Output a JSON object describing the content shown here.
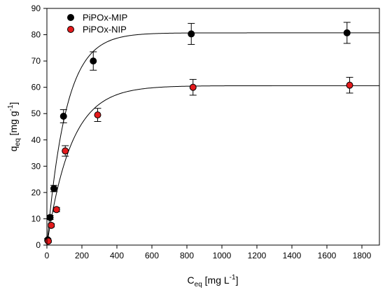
{
  "chart_data": {
    "type": "scatter",
    "title": "",
    "xlabel": {
      "base": "C",
      "sub": "eq",
      "unit_pre": " [mg L",
      "unit_sup": "-1",
      "unit_post": "]"
    },
    "ylabel": {
      "base": "q",
      "sub": "eq",
      "unit_pre": " [mg g",
      "unit_sup": "-1",
      "unit_post": "]"
    },
    "xlim": [
      0,
      1900
    ],
    "ylim": [
      0,
      90
    ],
    "xticks": [
      0,
      200,
      400,
      600,
      800,
      1000,
      1200,
      1400,
      1600,
      1800
    ],
    "yticks": [
      0,
      10,
      20,
      30,
      40,
      50,
      60,
      70,
      80,
      90
    ],
    "grid": false,
    "legend_position": "top-left",
    "series": [
      {
        "name": "PiPOx-MIP",
        "color": "#000000",
        "points": [
          {
            "x": 5,
            "y": 2.0,
            "err": 0.5
          },
          {
            "x": 18,
            "y": 10.5,
            "err": 0.8
          },
          {
            "x": 40,
            "y": 21.5,
            "err": 1.2
          },
          {
            "x": 95,
            "y": 49.0,
            "err": 2.5
          },
          {
            "x": 265,
            "y": 70.0,
            "err": 3.5
          },
          {
            "x": 825,
            "y": 80.3,
            "err": 4.0
          },
          {
            "x": 1715,
            "y": 80.7,
            "err": 4.0
          }
        ],
        "fit": {
          "qmax": 80.7,
          "k": 0.0092
        }
      },
      {
        "name": "PiPOx-NIP",
        "color": "#e41a1c",
        "points": [
          {
            "x": 8,
            "y": 1.5,
            "err": 0.4
          },
          {
            "x": 25,
            "y": 7.5,
            "err": 0.6
          },
          {
            "x": 55,
            "y": 13.5,
            "err": 0.8
          },
          {
            "x": 105,
            "y": 35.8,
            "err": 2.0
          },
          {
            "x": 290,
            "y": 49.5,
            "err": 2.5
          },
          {
            "x": 835,
            "y": 60.0,
            "err": 3.0
          },
          {
            "x": 1730,
            "y": 60.8,
            "err": 3.0
          }
        ],
        "fit": {
          "qmax": 60.6,
          "k": 0.0072
        }
      }
    ]
  }
}
